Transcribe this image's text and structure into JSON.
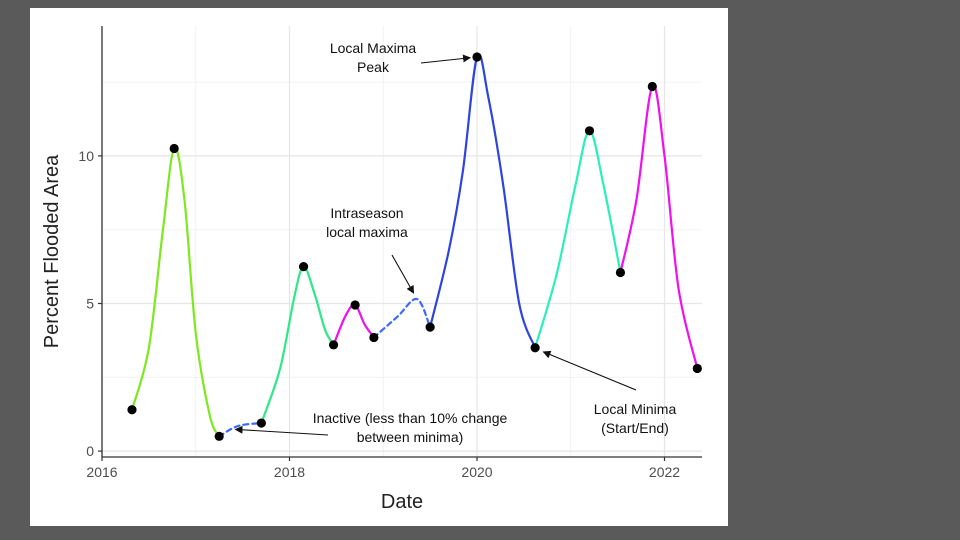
{
  "chart_data": {
    "type": "line",
    "title": "",
    "xlabel": "Date",
    "ylabel": "Percent Flooded Area",
    "xlim": [
      2016.0,
      2022.4
    ],
    "ylim": [
      -0.2,
      14.4
    ],
    "x_ticks": [
      2016,
      2018,
      2020,
      2022
    ],
    "x_tick_labels": [
      "2016",
      "2018",
      "2020",
      "2022"
    ],
    "y_ticks": [
      0,
      5,
      10
    ],
    "y_tick_labels": [
      "0",
      "5",
      "10"
    ],
    "grid": true,
    "background": "#ffffff",
    "points": [
      {
        "x": 2016.32,
        "y": 1.4
      },
      {
        "x": 2016.77,
        "y": 10.25
      },
      {
        "x": 2017.25,
        "y": 0.5
      },
      {
        "x": 2017.7,
        "y": 0.95
      },
      {
        "x": 2018.15,
        "y": 6.25
      },
      {
        "x": 2018.47,
        "y": 3.6
      },
      {
        "x": 2018.7,
        "y": 4.95
      },
      {
        "x": 2018.9,
        "y": 3.85
      },
      {
        "x": 2019.5,
        "y": 4.2
      },
      {
        "x": 2020.0,
        "y": 13.35
      },
      {
        "x": 2020.62,
        "y": 3.5
      },
      {
        "x": 2021.2,
        "y": 10.85
      },
      {
        "x": 2021.53,
        "y": 6.05
      },
      {
        "x": 2021.87,
        "y": 12.35
      },
      {
        "x": 2022.35,
        "y": 2.8
      }
    ],
    "segments": [
      {
        "color": "#7ee81f",
        "dashed": false,
        "points": [
          [
            2016.32,
            1.4
          ],
          [
            2016.5,
            3.5
          ],
          [
            2016.65,
            7.5
          ],
          [
            2016.77,
            10.25
          ],
          [
            2016.88,
            8.5
          ],
          [
            2017.0,
            4.0
          ],
          [
            2017.15,
            1.2
          ],
          [
            2017.25,
            0.5
          ]
        ]
      },
      {
        "color": "#3d68ff",
        "dashed": true,
        "points": [
          [
            2017.25,
            0.5
          ],
          [
            2017.45,
            0.85
          ],
          [
            2017.7,
            0.95
          ]
        ]
      },
      {
        "color": "#2ee888",
        "dashed": false,
        "points": [
          [
            2017.7,
            0.95
          ],
          [
            2017.9,
            2.8
          ],
          [
            2018.05,
            5.2
          ],
          [
            2018.15,
            6.25
          ],
          [
            2018.27,
            5.3
          ],
          [
            2018.38,
            4.1
          ],
          [
            2018.47,
            3.6
          ]
        ]
      },
      {
        "color": "#ee10ee",
        "dashed": false,
        "points": [
          [
            2018.47,
            3.6
          ],
          [
            2018.6,
            4.6
          ],
          [
            2018.7,
            4.95
          ],
          [
            2018.8,
            4.3
          ],
          [
            2018.9,
            3.85
          ]
        ]
      },
      {
        "color": "#3d68ff",
        "dashed": true,
        "points": [
          [
            2018.9,
            3.85
          ],
          [
            2019.15,
            4.55
          ],
          [
            2019.36,
            5.15
          ],
          [
            2019.5,
            4.2
          ]
        ]
      },
      {
        "color": "#2e44e0",
        "dashed": false,
        "points": [
          [
            2019.5,
            4.2
          ],
          [
            2019.7,
            6.8
          ],
          [
            2019.85,
            9.5
          ],
          [
            2020.0,
            13.35
          ],
          [
            2020.12,
            12.0
          ],
          [
            2020.28,
            9.0
          ],
          [
            2020.45,
            5.0
          ],
          [
            2020.62,
            3.5
          ]
        ]
      },
      {
        "color": "#2af0b8",
        "dashed": false,
        "points": [
          [
            2020.62,
            3.5
          ],
          [
            2020.85,
            6.0
          ],
          [
            2021.05,
            9.0
          ],
          [
            2021.2,
            10.85
          ],
          [
            2021.35,
            9.0
          ],
          [
            2021.53,
            6.05
          ]
        ]
      },
      {
        "color": "#ee10ee",
        "dashed": false,
        "points": [
          [
            2021.53,
            6.05
          ],
          [
            2021.7,
            8.5
          ],
          [
            2021.87,
            12.35
          ],
          [
            2022.0,
            10.0
          ],
          [
            2022.15,
            5.5
          ],
          [
            2022.35,
            2.8
          ]
        ]
      }
    ],
    "annotations": [
      {
        "lines": [
          "Local Maxima",
          "Peak"
        ],
        "target": [
          2020.0,
          13.35
        ]
      },
      {
        "lines": [
          "Intraseason",
          "local maxima"
        ],
        "target": [
          2019.36,
          5.15
        ]
      },
      {
        "lines": [
          "Inactive (less than 10% change",
          "between minima)"
        ],
        "target": [
          2017.35,
          0.75
        ]
      },
      {
        "lines": [
          "Local Minima",
          "(Start/End)"
        ],
        "target": [
          2020.64,
          3.45
        ]
      }
    ]
  }
}
